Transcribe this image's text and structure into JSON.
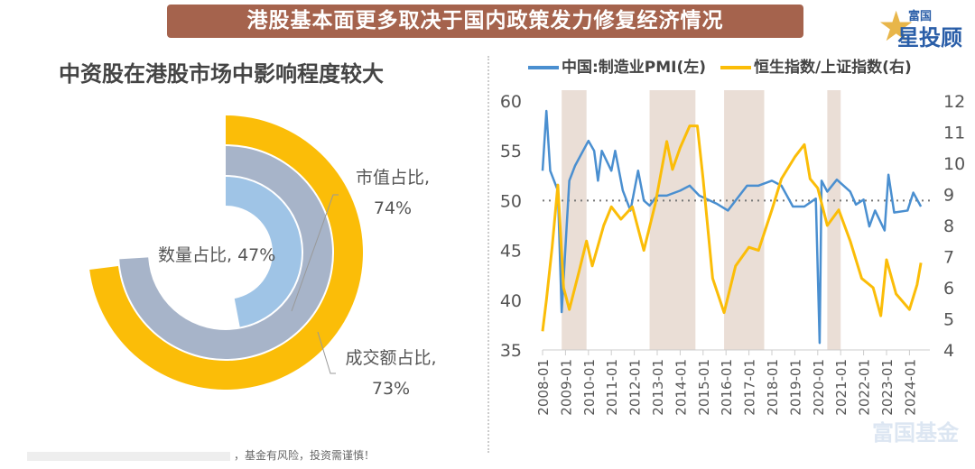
{
  "header": {
    "title": "港股基本面更多取决于国内政策发力修复经济情况"
  },
  "logo": {
    "line1": "富国",
    "line2": "星投顾"
  },
  "watermark": "富国基金",
  "footer": {
    "disclaimer": "，基金有风险，投资需谨慎！"
  },
  "colors": {
    "banner": "#a5634d",
    "yellow": "#fbbd08",
    "gray": "#a7b4c9",
    "blue": "#9fc4e6",
    "pmi": "#4a8fd0",
    "shade": "#eaded6"
  },
  "chart_data": [
    {
      "type": "radial-bar",
      "title": "中资股在港股市场中影响程度较大",
      "series": [
        {
          "name": "成交额占比",
          "value": 73,
          "label": "成交额占比,",
          "value_label": "73%",
          "color": "#fbbd08"
        },
        {
          "name": "市值占比",
          "value": 74,
          "label": "市值占比,",
          "value_label": "74%",
          "color": "#a7b4c9"
        },
        {
          "name": "数量占比",
          "value": 47,
          "label": "数量占比, 47%",
          "color": "#9fc4e6"
        }
      ]
    },
    {
      "type": "line",
      "legend": [
        "中国:制造业PMI(左)",
        "恒生指数/上证指数(右)"
      ],
      "legend_position": "top",
      "x_ticks": [
        "2008-01",
        "2009-01",
        "2010-01",
        "2011-01",
        "2012-01",
        "2013-01",
        "2014-01",
        "2015-01",
        "2016-01",
        "2017-01",
        "2018-01",
        "2019-01",
        "2020-01",
        "2021-01",
        "2022-01",
        "2023-01",
        "2024-01"
      ],
      "y_left": {
        "range": [
          35,
          60
        ],
        "ticks": [
          "35",
          "40",
          "45",
          "50",
          "55",
          "60"
        ]
      },
      "y_right": {
        "range": [
          4,
          12
        ],
        "ticks": [
          "4",
          "5",
          "6",
          "7",
          "8",
          "9",
          "10",
          "11",
          "12"
        ]
      },
      "reference_line": {
        "axis": "left",
        "value": 50,
        "style": "dotted"
      },
      "shaded_periods": [
        [
          "2008-11",
          "2009-12"
        ],
        [
          "2012-09",
          "2014-09"
        ],
        [
          "2015-12",
          "2017-09"
        ],
        [
          "2020-06",
          "2021-01"
        ]
      ],
      "series": [
        {
          "name": "中国:制造业PMI(左)",
          "axis": "left",
          "color": "#4a8fd0",
          "points": [
            [
              "2008-01",
              53
            ],
            [
              "2008-03",
              59
            ],
            [
              "2008-05",
              53
            ],
            [
              "2008-09",
              51
            ],
            [
              "2008-11",
              38.8
            ],
            [
              "2009-03",
              52
            ],
            [
              "2009-06",
              53.5
            ],
            [
              "2010-01",
              56
            ],
            [
              "2010-04",
              55
            ],
            [
              "2010-06",
              52
            ],
            [
              "2010-08",
              55
            ],
            [
              "2011-01",
              53
            ],
            [
              "2011-03",
              55
            ],
            [
              "2011-07",
              51
            ],
            [
              "2011-11",
              49
            ],
            [
              "2012-03",
              53
            ],
            [
              "2012-06",
              50
            ],
            [
              "2012-09",
              49.5
            ],
            [
              "2013-01",
              50.5
            ],
            [
              "2013-06",
              50.5
            ],
            [
              "2014-01",
              51
            ],
            [
              "2014-06",
              51.5
            ],
            [
              "2014-11",
              50.5
            ],
            [
              "2015-08",
              49.7
            ],
            [
              "2016-02",
              49
            ],
            [
              "2016-06",
              50
            ],
            [
              "2016-12",
              51.5
            ],
            [
              "2017-06",
              51.5
            ],
            [
              "2018-01",
              52
            ],
            [
              "2018-06",
              51.5
            ],
            [
              "2018-12",
              49.4
            ],
            [
              "2019-06",
              49.4
            ],
            [
              "2019-12",
              50.2
            ],
            [
              "2020-02",
              35.7
            ],
            [
              "2020-03",
              52
            ],
            [
              "2020-06",
              50.9
            ],
            [
              "2020-11",
              52.1
            ],
            [
              "2021-06",
              50.9
            ],
            [
              "2021-09",
              49.6
            ],
            [
              "2022-01",
              50.1
            ],
            [
              "2022-04",
              47.4
            ],
            [
              "2022-07",
              49
            ],
            [
              "2022-12",
              47
            ],
            [
              "2023-02",
              52.6
            ],
            [
              "2023-05",
              48.8
            ],
            [
              "2023-12",
              49
            ],
            [
              "2024-03",
              50.8
            ],
            [
              "2024-07",
              49.4
            ]
          ]
        },
        {
          "name": "恒生指数/上证指数(右)",
          "axis": "right",
          "color": "#fbbd08",
          "points": [
            [
              "2008-01",
              4.6
            ],
            [
              "2008-03",
              5.6
            ],
            [
              "2008-06",
              7.3
            ],
            [
              "2008-09",
              9.3
            ],
            [
              "2008-12",
              6
            ],
            [
              "2009-03",
              5.3
            ],
            [
              "2009-08",
              6.5
            ],
            [
              "2009-12",
              7.5
            ],
            [
              "2010-03",
              6.7
            ],
            [
              "2010-09",
              8.0
            ],
            [
              "2011-01",
              8.6
            ],
            [
              "2011-06",
              8.2
            ],
            [
              "2011-12",
              8.6
            ],
            [
              "2012-06",
              7.2
            ],
            [
              "2012-12",
              8.7
            ],
            [
              "2013-06",
              10.7
            ],
            [
              "2013-09",
              9.8
            ],
            [
              "2014-01",
              10.5
            ],
            [
              "2014-06",
              11.2
            ],
            [
              "2014-10",
              11.2
            ],
            [
              "2015-01",
              9.5
            ],
            [
              "2015-06",
              6.3
            ],
            [
              "2015-12",
              5.2
            ],
            [
              "2016-06",
              6.7
            ],
            [
              "2017-01",
              7.3
            ],
            [
              "2017-06",
              7.2
            ],
            [
              "2018-01",
              8.5
            ],
            [
              "2018-06",
              9.5
            ],
            [
              "2019-01",
              10.2
            ],
            [
              "2019-06",
              10.6
            ],
            [
              "2019-09",
              9.5
            ],
            [
              "2020-01",
              9.2
            ],
            [
              "2020-06",
              8
            ],
            [
              "2020-12",
              8.5
            ],
            [
              "2021-06",
              7.5
            ],
            [
              "2021-12",
              6.3
            ],
            [
              "2022-06",
              6.0
            ],
            [
              "2022-10",
              5.1
            ],
            [
              "2023-01",
              6.9
            ],
            [
              "2023-06",
              5.8
            ],
            [
              "2024-01",
              5.3
            ],
            [
              "2024-05",
              6.1
            ],
            [
              "2024-07",
              6.8
            ]
          ]
        }
      ]
    }
  ]
}
